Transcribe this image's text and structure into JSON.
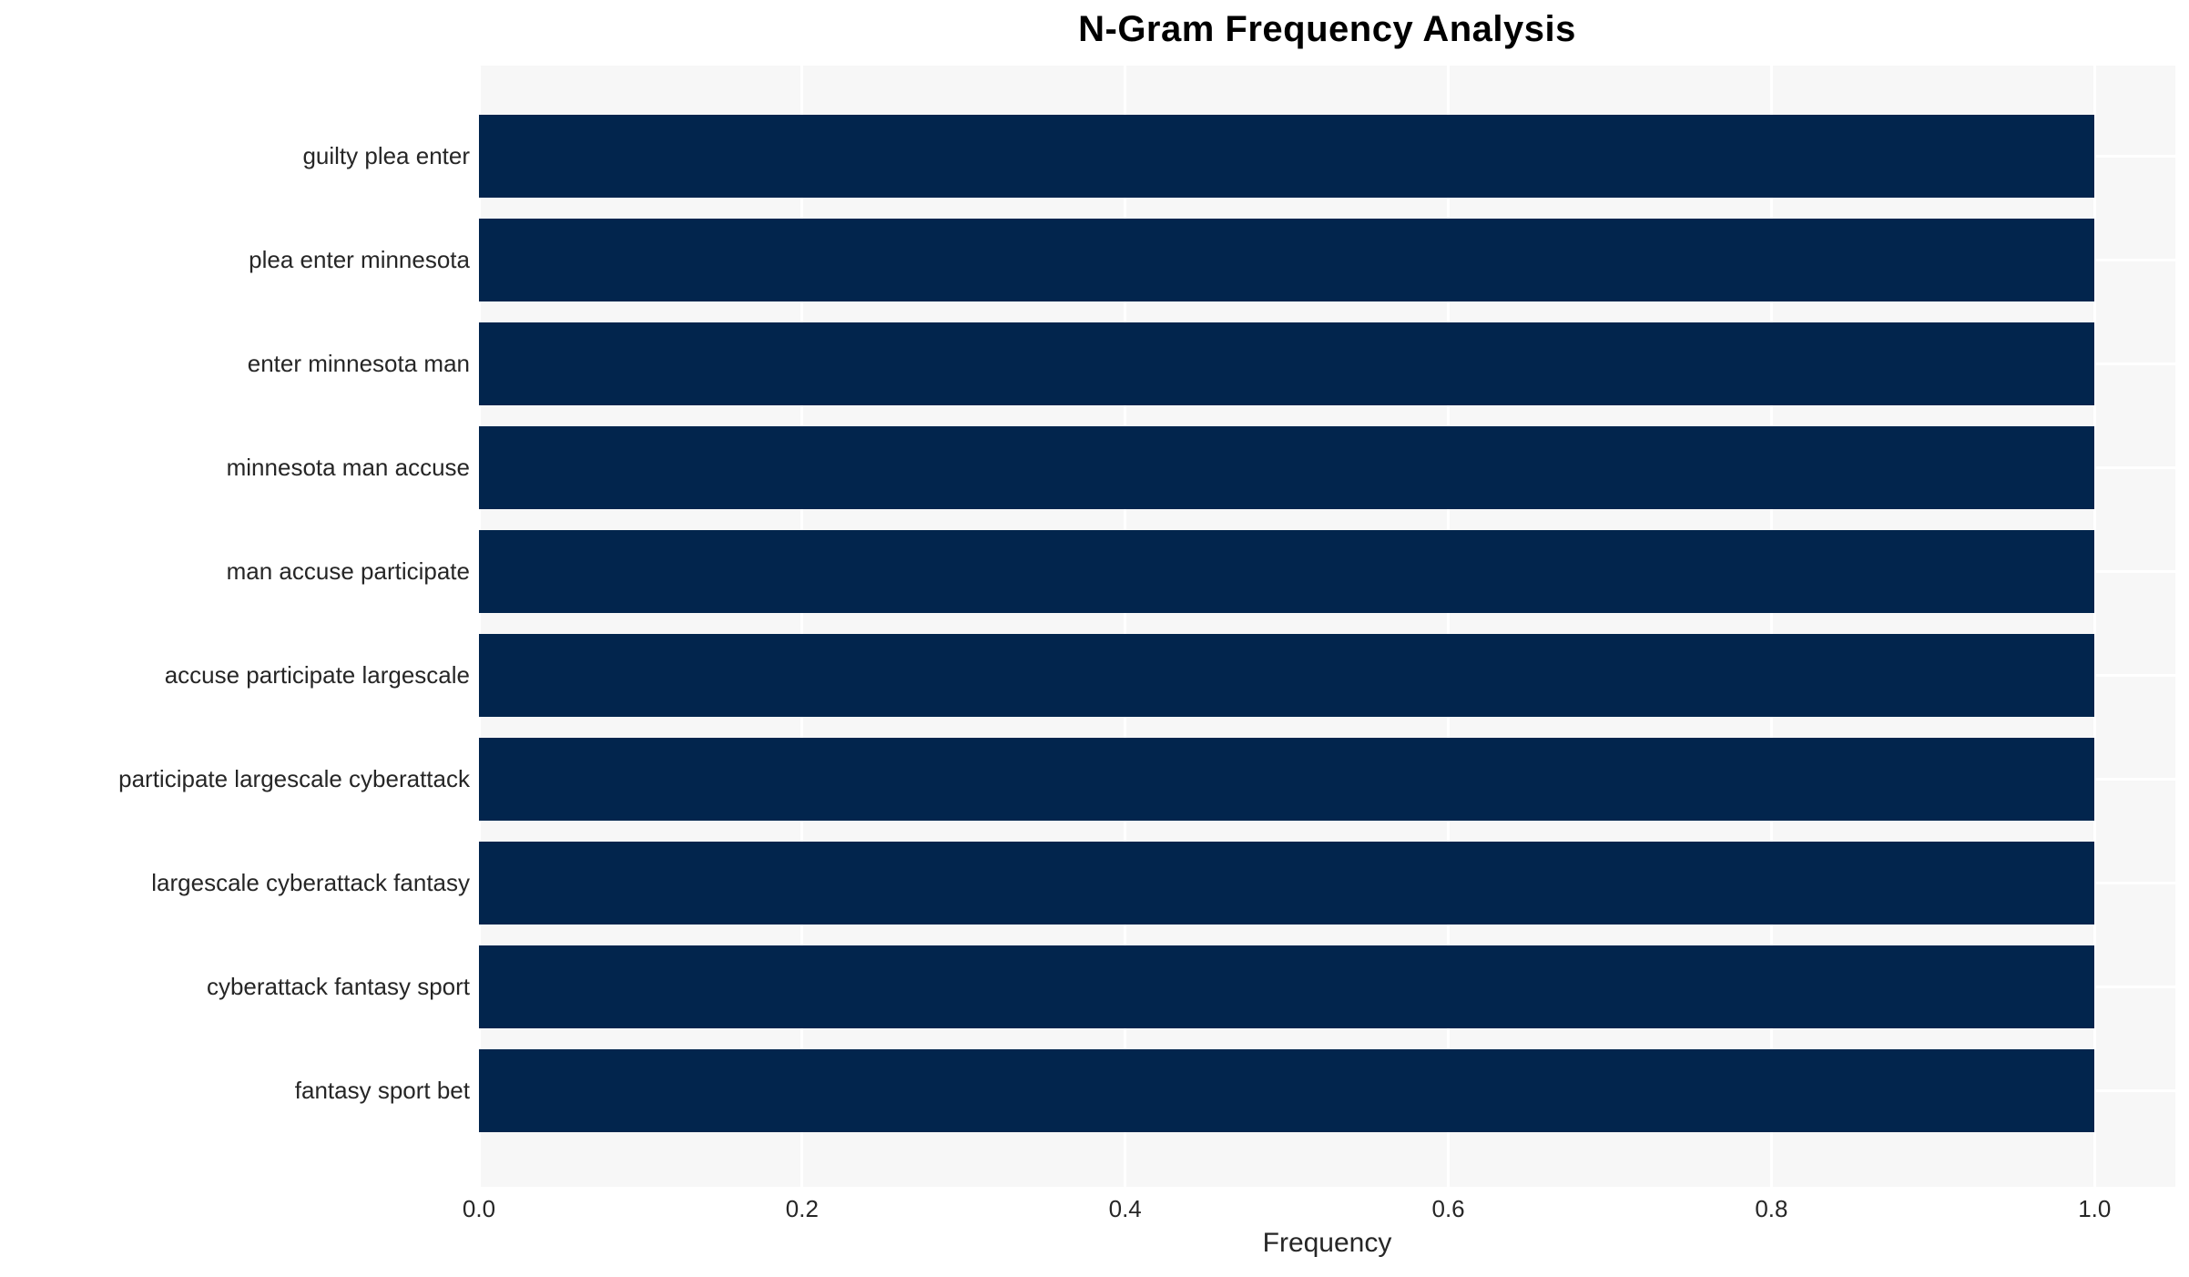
{
  "chart_data": {
    "type": "bar",
    "orientation": "horizontal",
    "title": "N-Gram Frequency Analysis",
    "xlabel": "Frequency",
    "ylabel": "",
    "categories": [
      "guilty plea enter",
      "plea enter minnesota",
      "enter minnesota man",
      "minnesota man accuse",
      "man accuse participate",
      "accuse participate largescale",
      "participate largescale cyberattack",
      "largescale cyberattack fantasy",
      "cyberattack fantasy sport",
      "fantasy sport bet"
    ],
    "values": [
      1.0,
      1.0,
      1.0,
      1.0,
      1.0,
      1.0,
      1.0,
      1.0,
      1.0,
      1.0
    ],
    "xlim": [
      0,
      1.05
    ],
    "xticks": [
      0.0,
      0.2,
      0.4,
      0.6,
      0.8,
      1.0
    ],
    "xtick_labels": [
      "0.0",
      "0.2",
      "0.4",
      "0.6",
      "0.8",
      "1.0"
    ],
    "grid": "both",
    "legend": "none",
    "colors": {
      "bar": "#02254d",
      "plot_background": "#f7f7f7",
      "gridline": "#ffffff",
      "tick_text": "#262626",
      "title_text": "#000000"
    }
  }
}
